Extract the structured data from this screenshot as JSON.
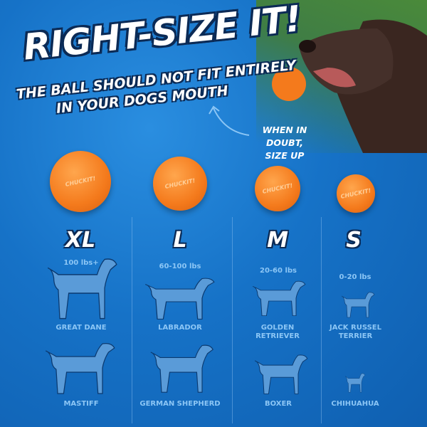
{
  "headline": "RIGHT-SIZE IT!",
  "subhead": [
    "THE BALL SHOULD NOT FIT ENTIRELY",
    "IN YOUR DOGS MOUTH"
  ],
  "tip": [
    "WHEN IN DOUBT,",
    "SIZE UP"
  ],
  "ball_brand": "CHUCKIT!",
  "colors": {
    "background": "#1672c7",
    "ball": "#f47a1c",
    "silhouette": "#5a9bd8",
    "breed_text": "#8cc6f5"
  },
  "sizes": [
    {
      "label": "XL",
      "weight": "100 lbs+",
      "breeds": [
        "GREAT DANE",
        "MASTIFF"
      ]
    },
    {
      "label": "L",
      "weight": "60-100 lbs",
      "breeds": [
        "LABRADOR",
        "GERMAN SHEPHERD"
      ]
    },
    {
      "label": "M",
      "weight": "20-60 lbs",
      "breeds": [
        "GOLDEN RETRIEVER",
        "BOXER"
      ]
    },
    {
      "label": "S",
      "weight": "0-20 lbs",
      "breeds": [
        "JACK RUSSEL TERRIER",
        "CHIHUAHUA"
      ]
    }
  ]
}
